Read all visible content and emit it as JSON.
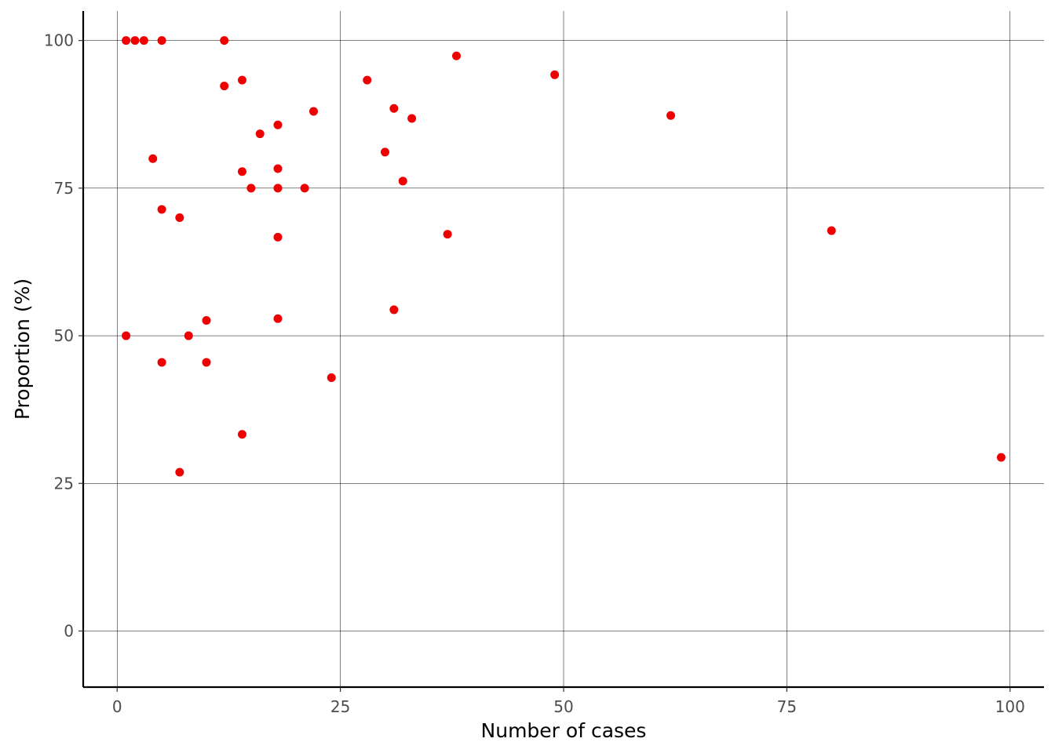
{
  "chart_data": {
    "type": "scatter",
    "title": "",
    "xlabel": "Number of cases",
    "ylabel": "Proportion (%)",
    "xlim": [
      -3.8,
      103.8
    ],
    "ylim": [
      -9.5,
      105
    ],
    "x_ticks": [
      0,
      25,
      50,
      75,
      100
    ],
    "y_ticks": [
      0,
      25,
      50,
      75,
      100
    ],
    "x_tick_labels": [
      "0",
      "25",
      "50",
      "75",
      "100"
    ],
    "y_tick_labels": [
      "0",
      "25",
      "50",
      "75",
      "100"
    ],
    "grid": true,
    "legend": "none",
    "point_color": "#ee0000",
    "points": [
      {
        "x": 1,
        "y": 100
      },
      {
        "x": 2,
        "y": 100
      },
      {
        "x": 3,
        "y": 100
      },
      {
        "x": 5,
        "y": 100
      },
      {
        "x": 12,
        "y": 100
      },
      {
        "x": 38,
        "y": 97.4
      },
      {
        "x": 49,
        "y": 94.2
      },
      {
        "x": 28,
        "y": 93.3
      },
      {
        "x": 14,
        "y": 93.3
      },
      {
        "x": 12,
        "y": 92.3
      },
      {
        "x": 31,
        "y": 88.5
      },
      {
        "x": 22,
        "y": 88
      },
      {
        "x": 62,
        "y": 87.3
      },
      {
        "x": 33,
        "y": 86.8
      },
      {
        "x": 18,
        "y": 85.7
      },
      {
        "x": 16,
        "y": 84.2
      },
      {
        "x": 30,
        "y": 81.1
      },
      {
        "x": 4,
        "y": 80
      },
      {
        "x": 18,
        "y": 78.3
      },
      {
        "x": 14,
        "y": 77.8
      },
      {
        "x": 32,
        "y": 76.2
      },
      {
        "x": 15,
        "y": 75
      },
      {
        "x": 18,
        "y": 75
      },
      {
        "x": 21,
        "y": 75
      },
      {
        "x": 5,
        "y": 71.4
      },
      {
        "x": 7,
        "y": 70
      },
      {
        "x": 80,
        "y": 67.8
      },
      {
        "x": 37,
        "y": 67.2
      },
      {
        "x": 18,
        "y": 66.7
      },
      {
        "x": 31,
        "y": 54.4
      },
      {
        "x": 18,
        "y": 52.9
      },
      {
        "x": 10,
        "y": 52.6
      },
      {
        "x": 1,
        "y": 50
      },
      {
        "x": 8,
        "y": 50
      },
      {
        "x": 5,
        "y": 45.5
      },
      {
        "x": 10,
        "y": 45.5
      },
      {
        "x": 24,
        "y": 42.9
      },
      {
        "x": 14,
        "y": 33.3
      },
      {
        "x": 99,
        "y": 29.4
      },
      {
        "x": 7,
        "y": 26.9
      }
    ]
  }
}
